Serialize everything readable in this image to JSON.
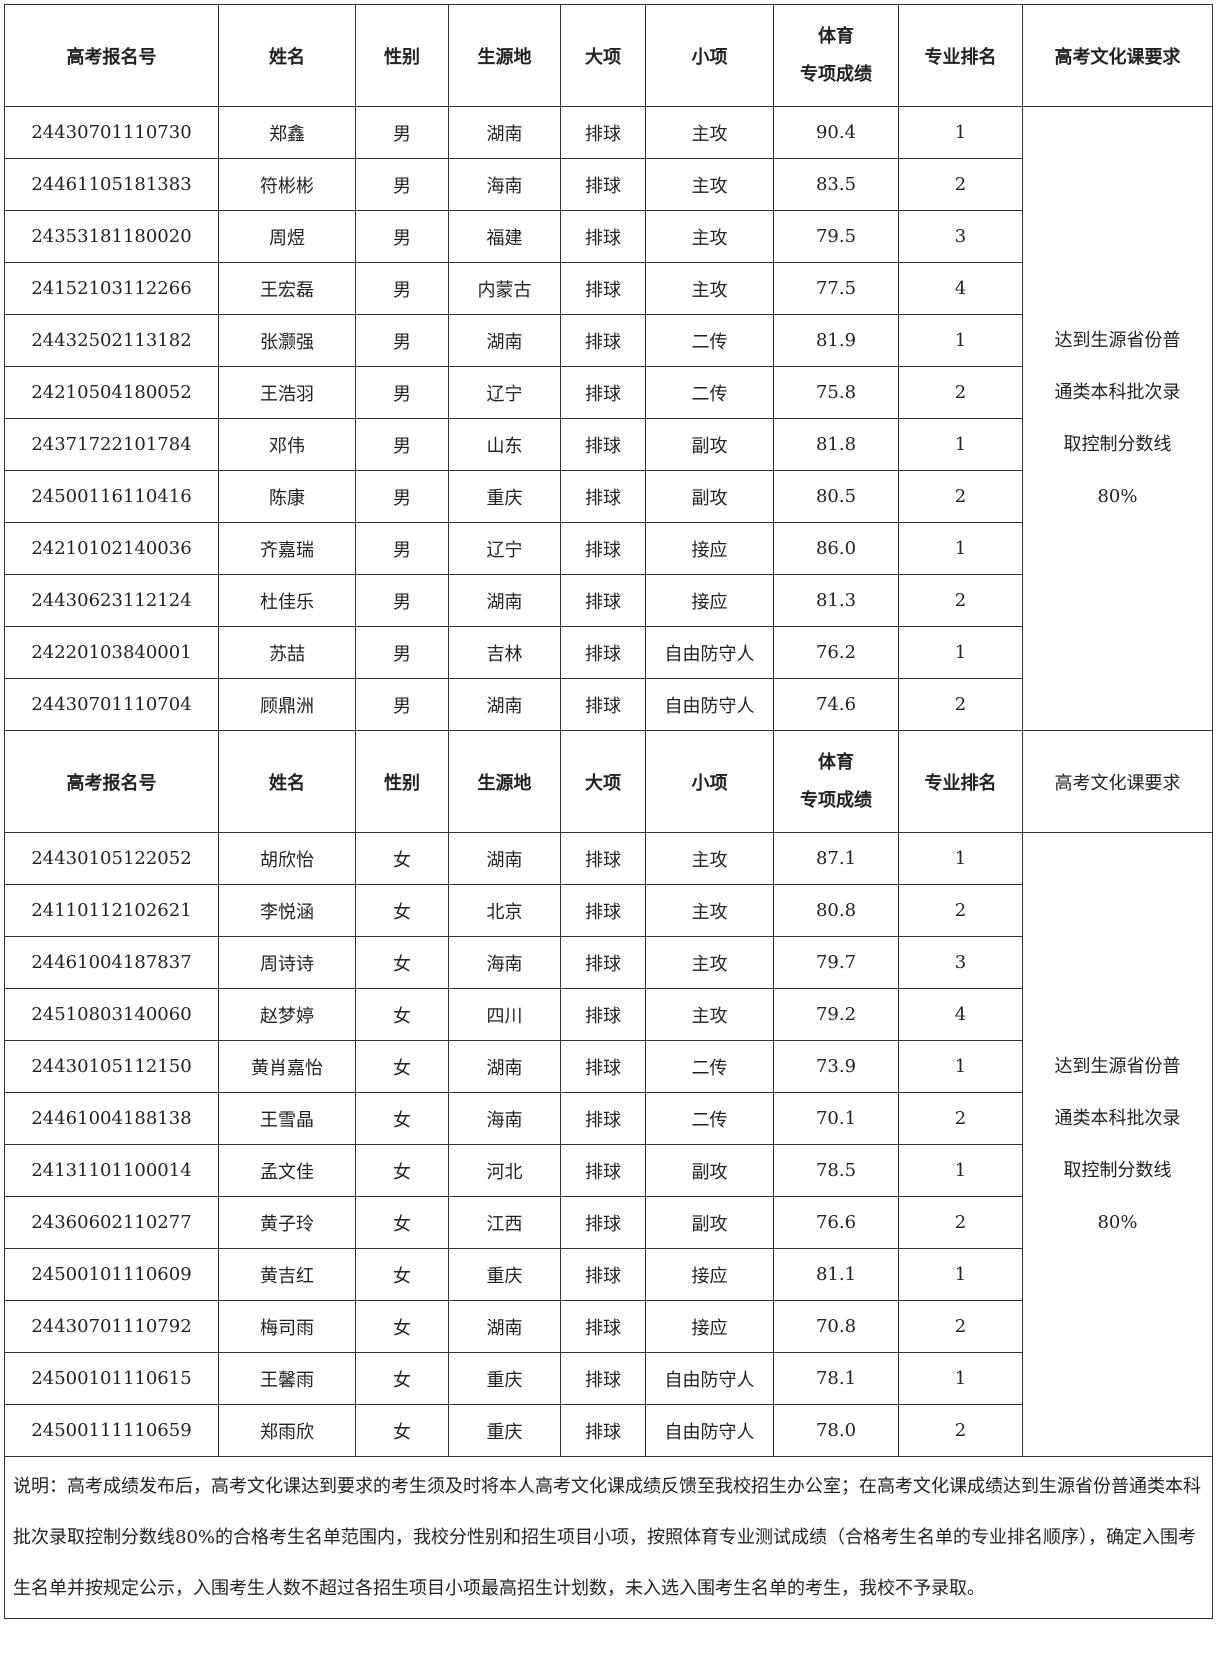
{
  "sections": [
    {
      "header": [
        "高考报名号",
        "姓名",
        "性别",
        "生源地",
        "大项",
        "小项",
        [
          "体育",
          "专项成绩"
        ],
        "专业排名",
        "高考文化课要求"
      ],
      "rows": [
        [
          "24430701110730",
          "郑鑫",
          "男",
          "湖南",
          "排球",
          "主攻",
          "90.4",
          "1"
        ],
        [
          "24461105181383",
          "符彬彬",
          "男",
          "海南",
          "排球",
          "主攻",
          "83.5",
          "2"
        ],
        [
          "24353181180020",
          "周煜",
          "男",
          "福建",
          "排球",
          "主攻",
          "79.5",
          "3"
        ],
        [
          "24152103112266",
          "王宏磊",
          "男",
          "内蒙古",
          "排球",
          "主攻",
          "77.5",
          "4"
        ],
        [
          "24432502113182",
          "张灏强",
          "男",
          "湖南",
          "排球",
          "二传",
          "81.9",
          "1"
        ],
        [
          "24210504180052",
          "王浩羽",
          "男",
          "辽宁",
          "排球",
          "二传",
          "75.8",
          "2"
        ],
        [
          "24371722101784",
          "邓伟",
          "男",
          "山东",
          "排球",
          "副攻",
          "81.8",
          "1"
        ],
        [
          "24500116110416",
          "陈康",
          "男",
          "重庆",
          "排球",
          "副攻",
          "80.5",
          "2"
        ],
        [
          "24210102140036",
          "齐嘉瑞",
          "男",
          "辽宁",
          "排球",
          "接应",
          "86.0",
          "1"
        ],
        [
          "24430623112124",
          "杜佳乐",
          "男",
          "湖南",
          "排球",
          "接应",
          "81.3",
          "2"
        ],
        [
          "24220103840001",
          "苏喆",
          "男",
          "吉林",
          "排球",
          "自由防守人",
          "76.2",
          "1"
        ],
        [
          "24430701110704",
          "顾鼎洲",
          "男",
          "湖南",
          "排球",
          "自由防守人",
          "74.6",
          "2"
        ]
      ],
      "requirement": "达到生源省份普通类本科批次录取控制分数线80%"
    },
    {
      "header": [
        "高考报名号",
        "姓名",
        "性别",
        "生源地",
        "大项",
        "小项",
        [
          "体育",
          "专项成绩"
        ],
        "专业排名",
        "高考文化课要求"
      ],
      "rows": [
        [
          "24430105122052",
          "胡欣怡",
          "女",
          "湖南",
          "排球",
          "主攻",
          "87.1",
          "1"
        ],
        [
          "24110112102621",
          "李悦涵",
          "女",
          "北京",
          "排球",
          "主攻",
          "80.8",
          "2"
        ],
        [
          "24461004187837",
          "周诗诗",
          "女",
          "海南",
          "排球",
          "主攻",
          "79.7",
          "3"
        ],
        [
          "24510803140060",
          "赵梦婷",
          "女",
          "四川",
          "排球",
          "主攻",
          "79.2",
          "4"
        ],
        [
          "24430105112150",
          "黄肖嘉怡",
          "女",
          "湖南",
          "排球",
          "二传",
          "73.9",
          "1"
        ],
        [
          "24461004188138",
          "王雪晶",
          "女",
          "海南",
          "排球",
          "二传",
          "70.1",
          "2"
        ],
        [
          "24131101100014",
          "孟文佳",
          "女",
          "河北",
          "排球",
          "副攻",
          "78.5",
          "1"
        ],
        [
          "24360602110277",
          "黄子玲",
          "女",
          "江西",
          "排球",
          "副攻",
          "76.6",
          "2"
        ],
        [
          "24500101110609",
          "黄吉红",
          "女",
          "重庆",
          "排球",
          "接应",
          "81.1",
          "1"
        ],
        [
          "24430701110792",
          "梅司雨",
          "女",
          "湖南",
          "排球",
          "接应",
          "70.8",
          "2"
        ],
        [
          "24500101110615",
          "王馨雨",
          "女",
          "重庆",
          "排球",
          "自由防守人",
          "78.1",
          "1"
        ],
        [
          "24500111110659",
          "郑雨欣",
          "女",
          "重庆",
          "排球",
          "自由防守人",
          "78.0",
          "2"
        ]
      ],
      "requirement": "达到生源省份普通类本科批次录取控制分数线80%"
    }
  ],
  "note": "说明：高考成绩发布后，高考文化课达到要求的考生须及时将本人高考文化课成绩反馈至我校招生办公室；在高考文化课成绩达到生源省份普通类本科批次录取控制分数线80%的合格考生名单范围内，我校分性别和招生项目小项，按照体育专业测试成绩（合格考生名单的专业排名顺序），确定入围考生名单并按规定公示，入围考生人数不超过各招生项目小项最高招生计划数，未入选入围考生名单的考生，我校不予录取。"
}
